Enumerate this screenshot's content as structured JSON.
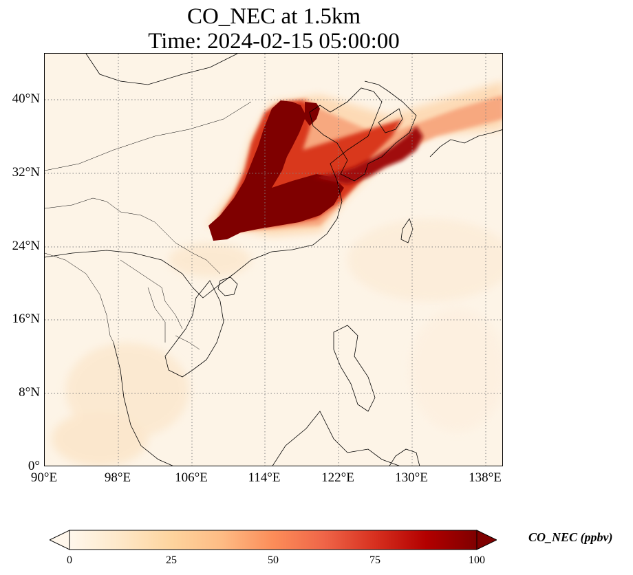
{
  "title_line1": "CO_NEC at 1.5km",
  "title_line2": "Time: 2024-02-15 05:00:00",
  "lat_ticks": [
    "0°",
    "8°N",
    "16°N",
    "24°N",
    "32°N",
    "40°N"
  ],
  "lon_ticks": [
    "90°E",
    "98°E",
    "106°E",
    "114°E",
    "122°E",
    "130°E",
    "138°E"
  ],
  "extent": {
    "lon_min": 90,
    "lon_max": 140,
    "lat_min": 0,
    "lat_max": 45
  },
  "colorbar": {
    "label": "CO_NEC (ppbv)",
    "ticks": [
      "0",
      "25",
      "50",
      "75",
      "100"
    ],
    "colormap": "OrRd",
    "colors": [
      "#fff7ec",
      "#fee8c8",
      "#fdd49e",
      "#fdbb84",
      "#fc8d59",
      "#ef6548",
      "#d7301f",
      "#b30000",
      "#7f0000"
    ],
    "extend": "both"
  },
  "grid": "dotted gray lines at labeled ticks",
  "colors": {
    "background": "#fdf4e7",
    "coastline": "#000000",
    "plume_max": "#7f0000"
  }
}
